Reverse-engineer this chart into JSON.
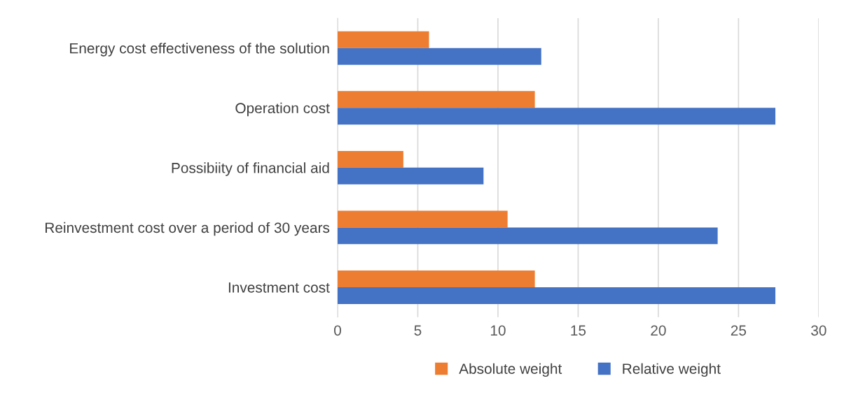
{
  "chart_data": {
    "type": "bar",
    "orientation": "horizontal",
    "categories": [
      "Energy cost effectiveness of the solution",
      "Operation cost",
      "Possibiity of financial aid",
      "Reinvestment cost over a period of 30 years",
      "Investment cost"
    ],
    "series": [
      {
        "name": "Absolute weight",
        "color": "#ed7d31",
        "values": [
          5.7,
          12.3,
          4.1,
          10.6,
          12.3
        ]
      },
      {
        "name": "Relative weight",
        "color": "#4472c4",
        "values": [
          12.7,
          27.3,
          9.1,
          23.7,
          27.3
        ]
      }
    ],
    "xlim": [
      0,
      30
    ],
    "xticks": [
      0,
      5,
      10,
      15,
      20,
      25,
      30
    ],
    "grid": "x",
    "legend": "bottom"
  }
}
